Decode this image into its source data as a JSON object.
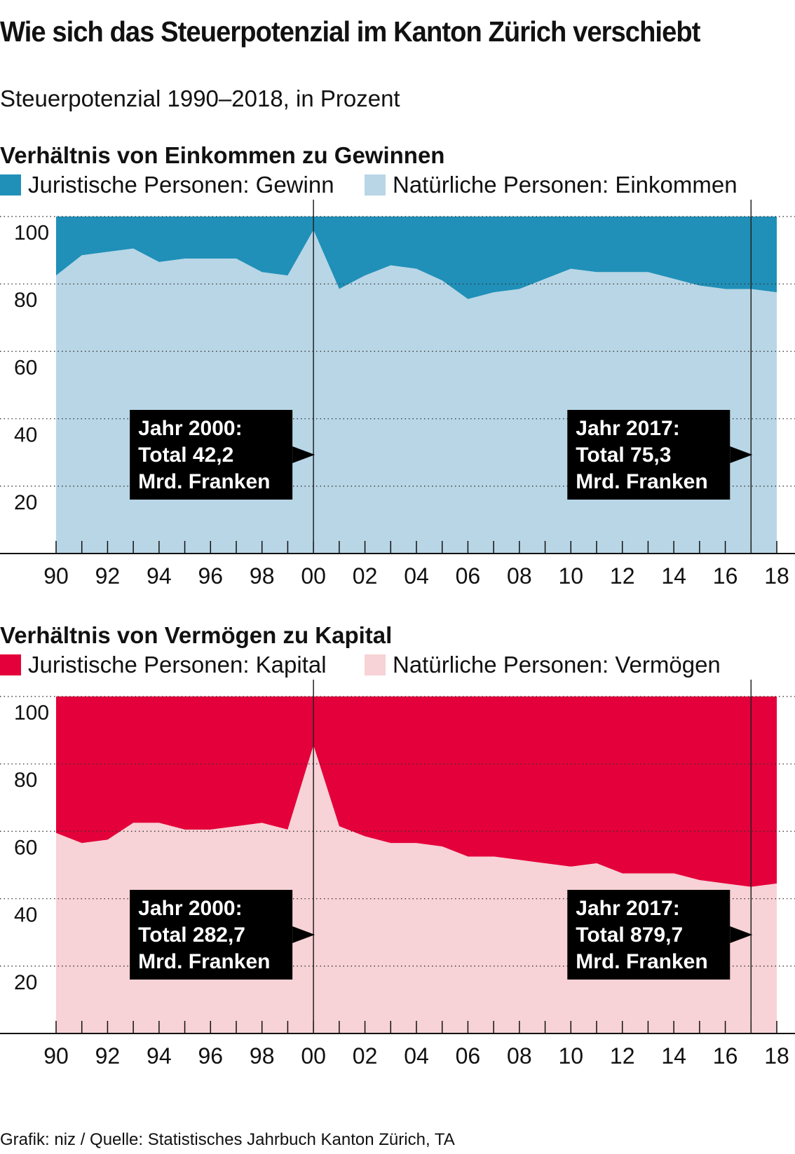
{
  "title": "Wie sich das Steuerpotenzial im Kanton Zürich verschiebt",
  "subtitle": "Steuerpotenzial 1990–2018, in Prozent",
  "footer": "Grafik: niz / Quelle: Statistisches Jahrbuch Kanton Zürich, TA",
  "chart_data": [
    {
      "type": "area",
      "stacked": true,
      "title": "Verhältnis von Einkommen zu Gewinnen",
      "x": [
        1990,
        1991,
        1992,
        1993,
        1994,
        1995,
        1996,
        1997,
        1998,
        1999,
        2000,
        2001,
        2002,
        2003,
        2004,
        2005,
        2006,
        2007,
        2008,
        2009,
        2010,
        2011,
        2012,
        2013,
        2014,
        2015,
        2016,
        2017,
        2018
      ],
      "x_tick_labels": [
        "90",
        "92",
        "94",
        "96",
        "98",
        "00",
        "02",
        "04",
        "06",
        "08",
        "10",
        "12",
        "14",
        "16",
        "18"
      ],
      "y_ticks": [
        20,
        40,
        60,
        80,
        100
      ],
      "ylim": [
        0,
        105
      ],
      "grid": true,
      "legend": "top-left",
      "series": [
        {
          "name": "Natürliche Personen: Einkommen",
          "color": "#b8d6e6",
          "values": [
            82.5,
            88.5,
            89.5,
            90.5,
            86.5,
            87.5,
            87.5,
            87.5,
            83.5,
            82.5,
            96,
            78.5,
            82.5,
            85.5,
            84.5,
            81,
            75.5,
            77.5,
            78.5,
            81.5,
            84.5,
            83.5,
            83.5,
            83.5,
            81.5,
            79.5,
            78.5,
            78.5,
            77.5
          ]
        },
        {
          "name": "Juristische Personen: Gewinn",
          "color": "#2090b8",
          "values": [
            17.5,
            11.5,
            10.5,
            9.5,
            13.5,
            12.5,
            12.5,
            12.5,
            16.5,
            17.5,
            4,
            21.5,
            17.5,
            14.5,
            15.5,
            19,
            24.5,
            22.5,
            21.5,
            18.5,
            15.5,
            16.5,
            16.5,
            16.5,
            18.5,
            20.5,
            21.5,
            21.5,
            22.5
          ]
        }
      ],
      "annotations": [
        {
          "year": 2000,
          "lines": [
            "Jahr 2000:",
            "Total 42,2",
            "Mrd. Franken"
          ]
        },
        {
          "year": 2017,
          "lines": [
            "Jahr 2017:",
            "Total 75,3",
            "Mrd. Franken"
          ]
        }
      ]
    },
    {
      "type": "area",
      "stacked": true,
      "title": "Verhältnis von Vermögen zu Kapital",
      "x": [
        1990,
        1991,
        1992,
        1993,
        1994,
        1995,
        1996,
        1997,
        1998,
        1999,
        2000,
        2001,
        2002,
        2003,
        2004,
        2005,
        2006,
        2007,
        2008,
        2009,
        2010,
        2011,
        2012,
        2013,
        2014,
        2015,
        2016,
        2017,
        2018
      ],
      "x_tick_labels": [
        "90",
        "92",
        "94",
        "96",
        "98",
        "00",
        "02",
        "04",
        "06",
        "08",
        "10",
        "12",
        "14",
        "16",
        "18"
      ],
      "y_ticks": [
        20,
        40,
        60,
        80,
        100
      ],
      "ylim": [
        0,
        105
      ],
      "grid": true,
      "legend": "top-left",
      "series": [
        {
          "name": "Natürliche Personen: Vermögen",
          "color": "#f7d2d6",
          "values": [
            59.5,
            56.5,
            57.5,
            62.5,
            62.5,
            60.5,
            60.5,
            61.5,
            62.5,
            60.5,
            85.5,
            61.5,
            58.5,
            56.5,
            56.5,
            55.5,
            52.5,
            52.5,
            51.5,
            50.5,
            49.5,
            50.5,
            47.5,
            47.5,
            47.5,
            45.5,
            44.5,
            43.5,
            44.5
          ]
        },
        {
          "name": "Juristische Personen: Kapital",
          "color": "#e4003a",
          "values": [
            40.5,
            43.5,
            42.5,
            37.5,
            37.5,
            39.5,
            39.5,
            38.5,
            37.5,
            39.5,
            14.5,
            38.5,
            41.5,
            43.5,
            43.5,
            44.5,
            47.5,
            47.5,
            48.5,
            49.5,
            50.5,
            49.5,
            52.5,
            52.5,
            52.5,
            54.5,
            55.5,
            56.5,
            55.5
          ]
        }
      ],
      "annotations": [
        {
          "year": 2000,
          "lines": [
            "Jahr 2000:",
            "Total 282,7",
            "Mrd. Franken"
          ]
        },
        {
          "year": 2017,
          "lines": [
            "Jahr 2017:",
            "Total 879,7",
            "Mrd. Franken"
          ]
        }
      ]
    }
  ]
}
